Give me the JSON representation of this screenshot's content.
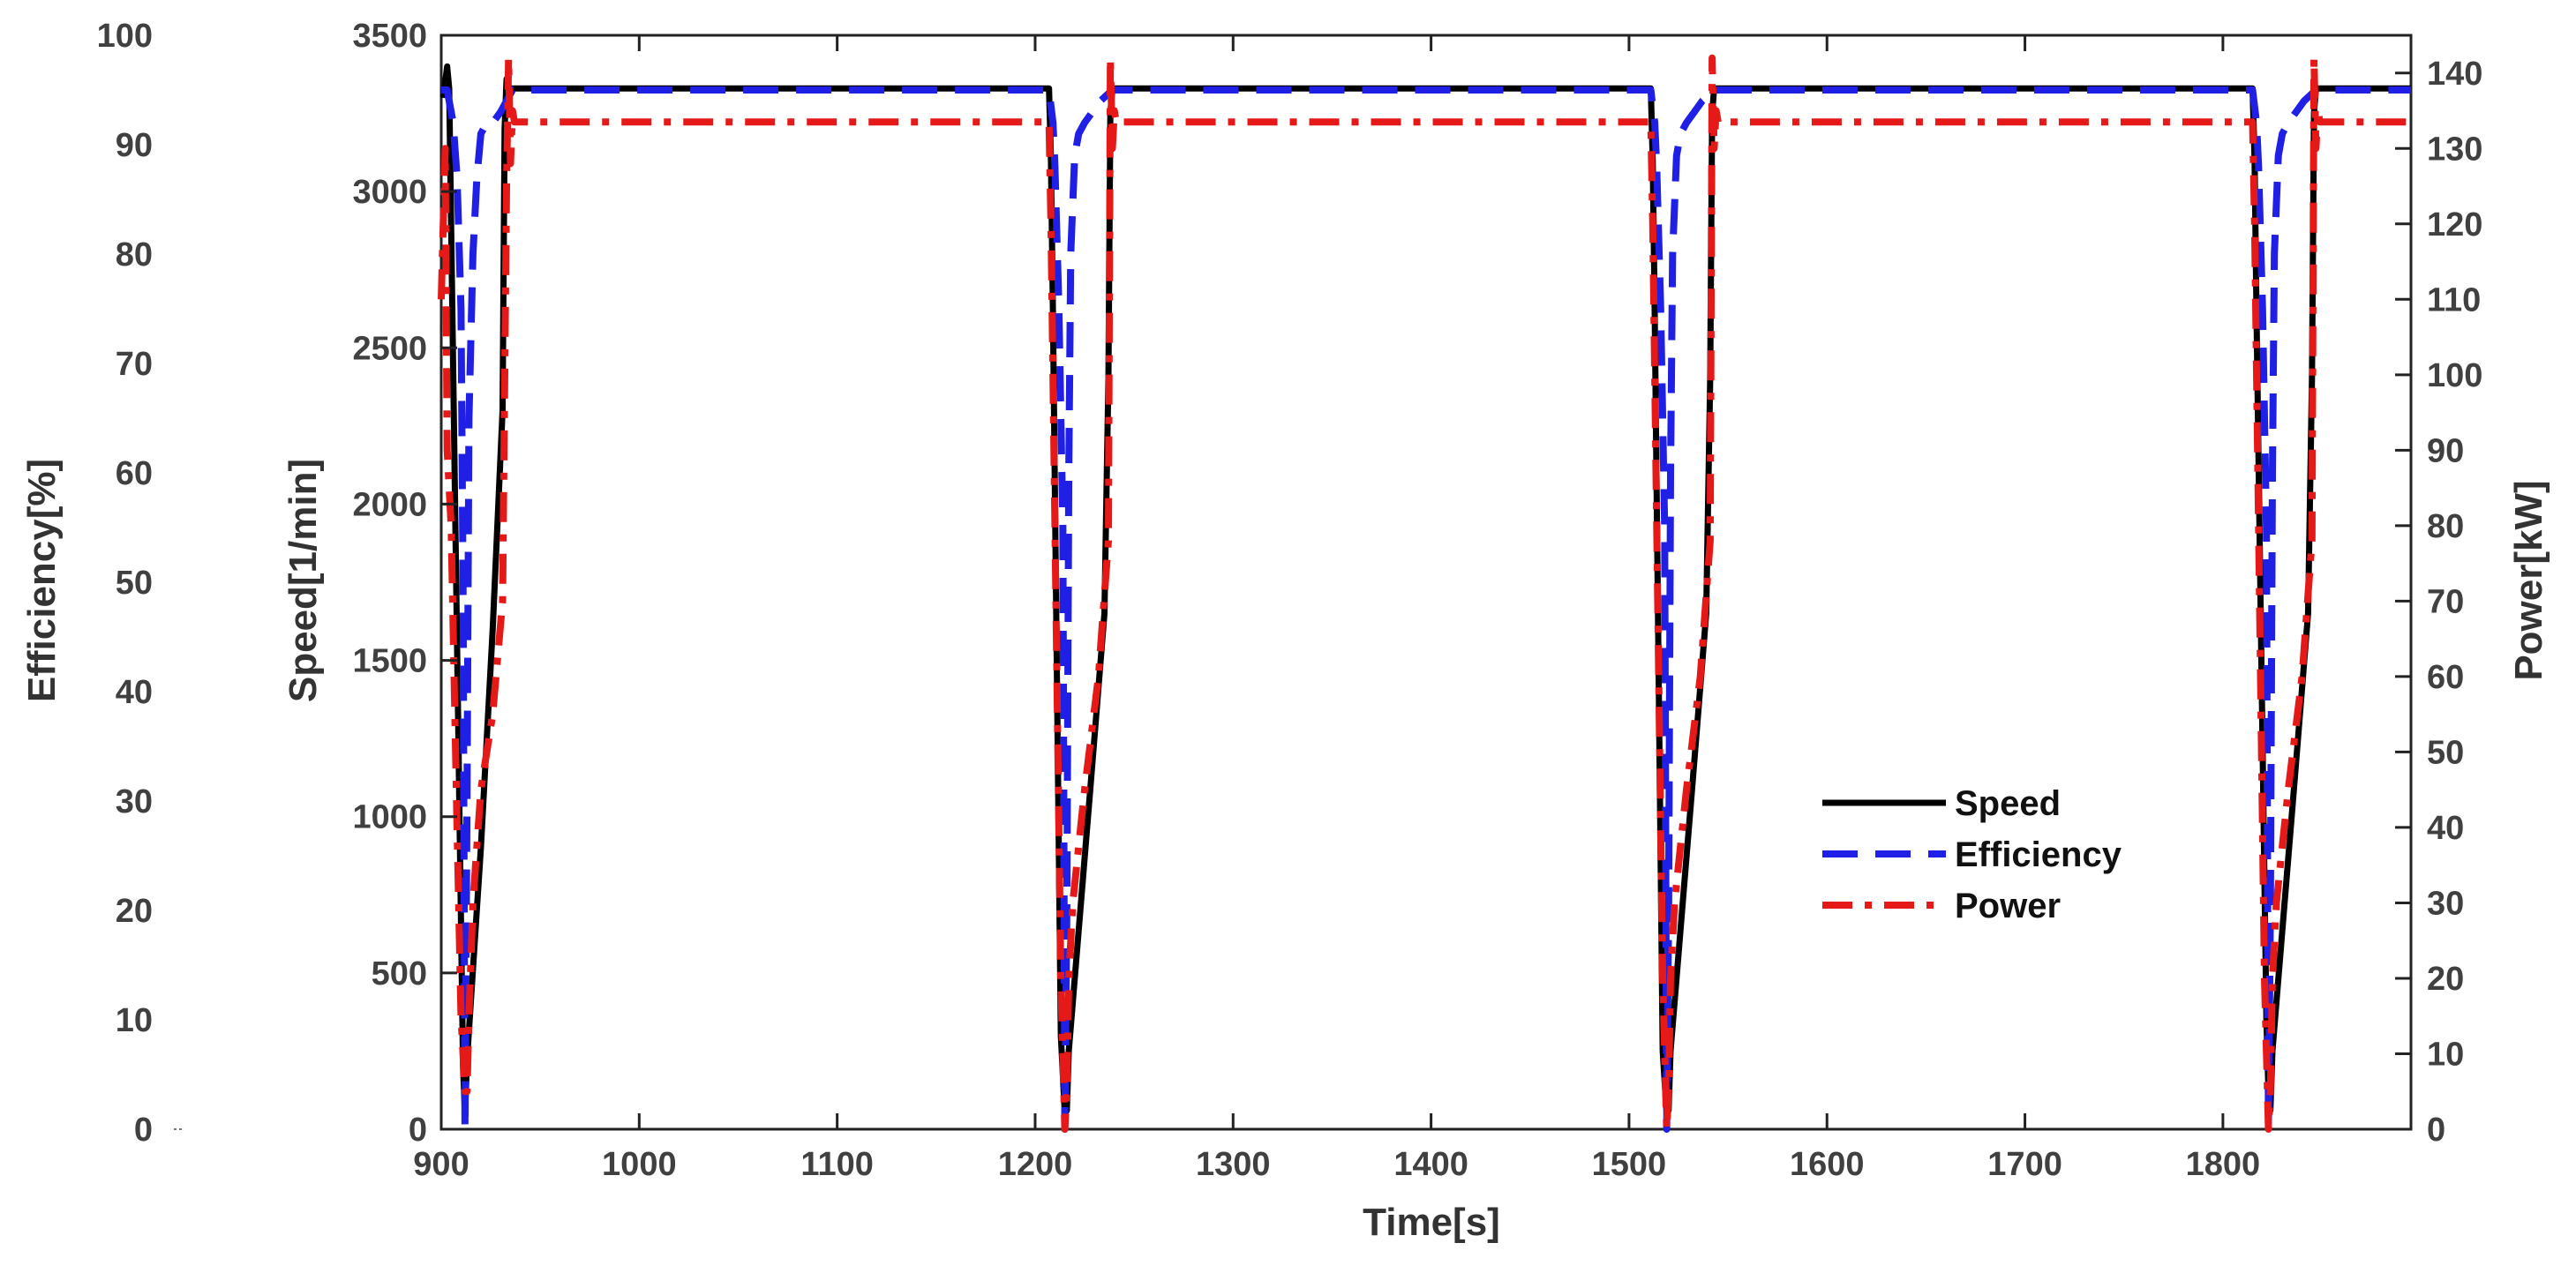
{
  "chart_data": {
    "type": "line",
    "xlabel": "Time[s]",
    "ylabel": "Speed[1/min]",
    "ylabel_left_outer": "Efficiency[%]",
    "ylabel_right": "Power[kW]",
    "xlim": [
      900,
      1895
    ],
    "xticks": [
      900,
      1000,
      1100,
      1200,
      1300,
      1400,
      1500,
      1600,
      1700,
      1800
    ],
    "speed_axis": {
      "range": [
        0,
        3500
      ],
      "ticks": [
        0,
        500,
        1000,
        1500,
        2000,
        2500,
        3000,
        3500
      ]
    },
    "efficiency_axis": {
      "range": [
        0,
        100
      ],
      "ticks": [
        0,
        10,
        20,
        30,
        40,
        50,
        60,
        70,
        80,
        90,
        100
      ]
    },
    "power_axis": {
      "range": [
        0,
        145
      ],
      "ticks": [
        0,
        10,
        20,
        30,
        40,
        50,
        60,
        70,
        80,
        90,
        100,
        110,
        120,
        130,
        140
      ]
    },
    "grid": false,
    "legend": {
      "position": "lower-right",
      "entries": [
        "Speed",
        "Efficiency",
        "Power"
      ]
    },
    "series": [
      {
        "name": "Speed",
        "axis": "speed",
        "color": "#000000",
        "style": "solid",
        "x": [
          901,
          903,
          904,
          911,
          912,
          913,
          920,
          926,
          931,
          932,
          933,
          934,
          1207,
          1208,
          1209,
          1213,
          1215,
          1216,
          1217,
          1228,
          1235,
          1237,
          1238,
          1239,
          1511,
          1512,
          1513,
          1517,
          1519,
          1520,
          1521,
          1532,
          1539,
          1541,
          1542,
          1543,
          1815,
          1816,
          1817,
          1822,
          1823,
          1824,
          1825,
          1836,
          1843,
          1845,
          1846,
          1847,
          1895
        ],
        "y": [
          3300,
          3400,
          3330,
          200,
          50,
          220,
          900,
          1600,
          2300,
          3200,
          3360,
          3330,
          3330,
          3100,
          2600,
          300,
          50,
          60,
          250,
          1100,
          1650,
          2400,
          3250,
          3330,
          3330,
          3100,
          2600,
          250,
          50,
          60,
          250,
          1100,
          1650,
          2400,
          3250,
          3330,
          3330,
          3100,
          2600,
          350,
          120,
          60,
          250,
          1100,
          1650,
          2400,
          3250,
          3330,
          3330
        ]
      },
      {
        "name": "Efficiency",
        "axis": "efficiency",
        "color": "#1f1fe6",
        "style": "dashed",
        "x": [
          900,
          903,
          906,
          908,
          910,
          911,
          912,
          913,
          914,
          916,
          918,
          920,
          923,
          926,
          930,
          933,
          936,
          1207,
          1209,
          1210,
          1212,
          1214,
          1215,
          1216,
          1217,
          1218,
          1220,
          1222,
          1225,
          1229,
          1233,
          1236,
          1239,
          1511,
          1513,
          1514,
          1516,
          1518,
          1519,
          1520,
          1521,
          1522,
          1524,
          1526,
          1529,
          1533,
          1537,
          1540,
          1543,
          1815,
          1817,
          1818,
          1820,
          1822,
          1823,
          1824,
          1825,
          1826,
          1828,
          1830,
          1833,
          1837,
          1841,
          1844,
          1847,
          1895
        ],
        "y": [
          95,
          95,
          92,
          87,
          75,
          50,
          0,
          30,
          65,
          80,
          87,
          91,
          92,
          92,
          93,
          94,
          95,
          95,
          92,
          88,
          75,
          55,
          0,
          20,
          60,
          80,
          89,
          91,
          92,
          93,
          94,
          94.5,
          95,
          95,
          92,
          88,
          75,
          55,
          0,
          20,
          60,
          80,
          89,
          91,
          92,
          93,
          94,
          94.5,
          95,
          95,
          92,
          88,
          75,
          55,
          0,
          20,
          60,
          80,
          89,
          91,
          92,
          93,
          94,
          94.5,
          95,
          95
        ]
      },
      {
        "name": "Power",
        "axis": "power",
        "color": "#e61919",
        "style": "dashdot",
        "x": [
          900,
          902,
          903,
          905,
          908,
          910,
          912,
          913,
          914,
          916,
          920,
          926,
          931,
          933,
          934,
          935,
          936,
          937,
          1207,
          1208,
          1210,
          1213,
          1215,
          1216,
          1217,
          1219,
          1225,
          1232,
          1237,
          1238,
          1239,
          1240,
          1241,
          1511,
          1512,
          1514,
          1517,
          1519,
          1520,
          1521,
          1523,
          1529,
          1536,
          1541,
          1542,
          1543,
          1544,
          1545,
          1815,
          1816,
          1818,
          1821,
          1823,
          1824,
          1825,
          1827,
          1833,
          1840,
          1845,
          1846,
          1847,
          1848,
          1849,
          1895
        ],
        "y": [
          110,
          130,
          90,
          80,
          40,
          15,
          5,
          5,
          15,
          30,
          45,
          55,
          70,
          125,
          142,
          128,
          135,
          133.5,
          133.5,
          120,
          80,
          20,
          0,
          5,
          20,
          30,
          45,
          60,
          78,
          142,
          130,
          135,
          133.5,
          133.5,
          120,
          80,
          20,
          0,
          5,
          20,
          30,
          45,
          60,
          78,
          142,
          130,
          135,
          133.5,
          133.5,
          120,
          80,
          20,
          0,
          5,
          20,
          30,
          45,
          60,
          78,
          142,
          130,
          135,
          133.5,
          133.5
        ]
      }
    ]
  }
}
